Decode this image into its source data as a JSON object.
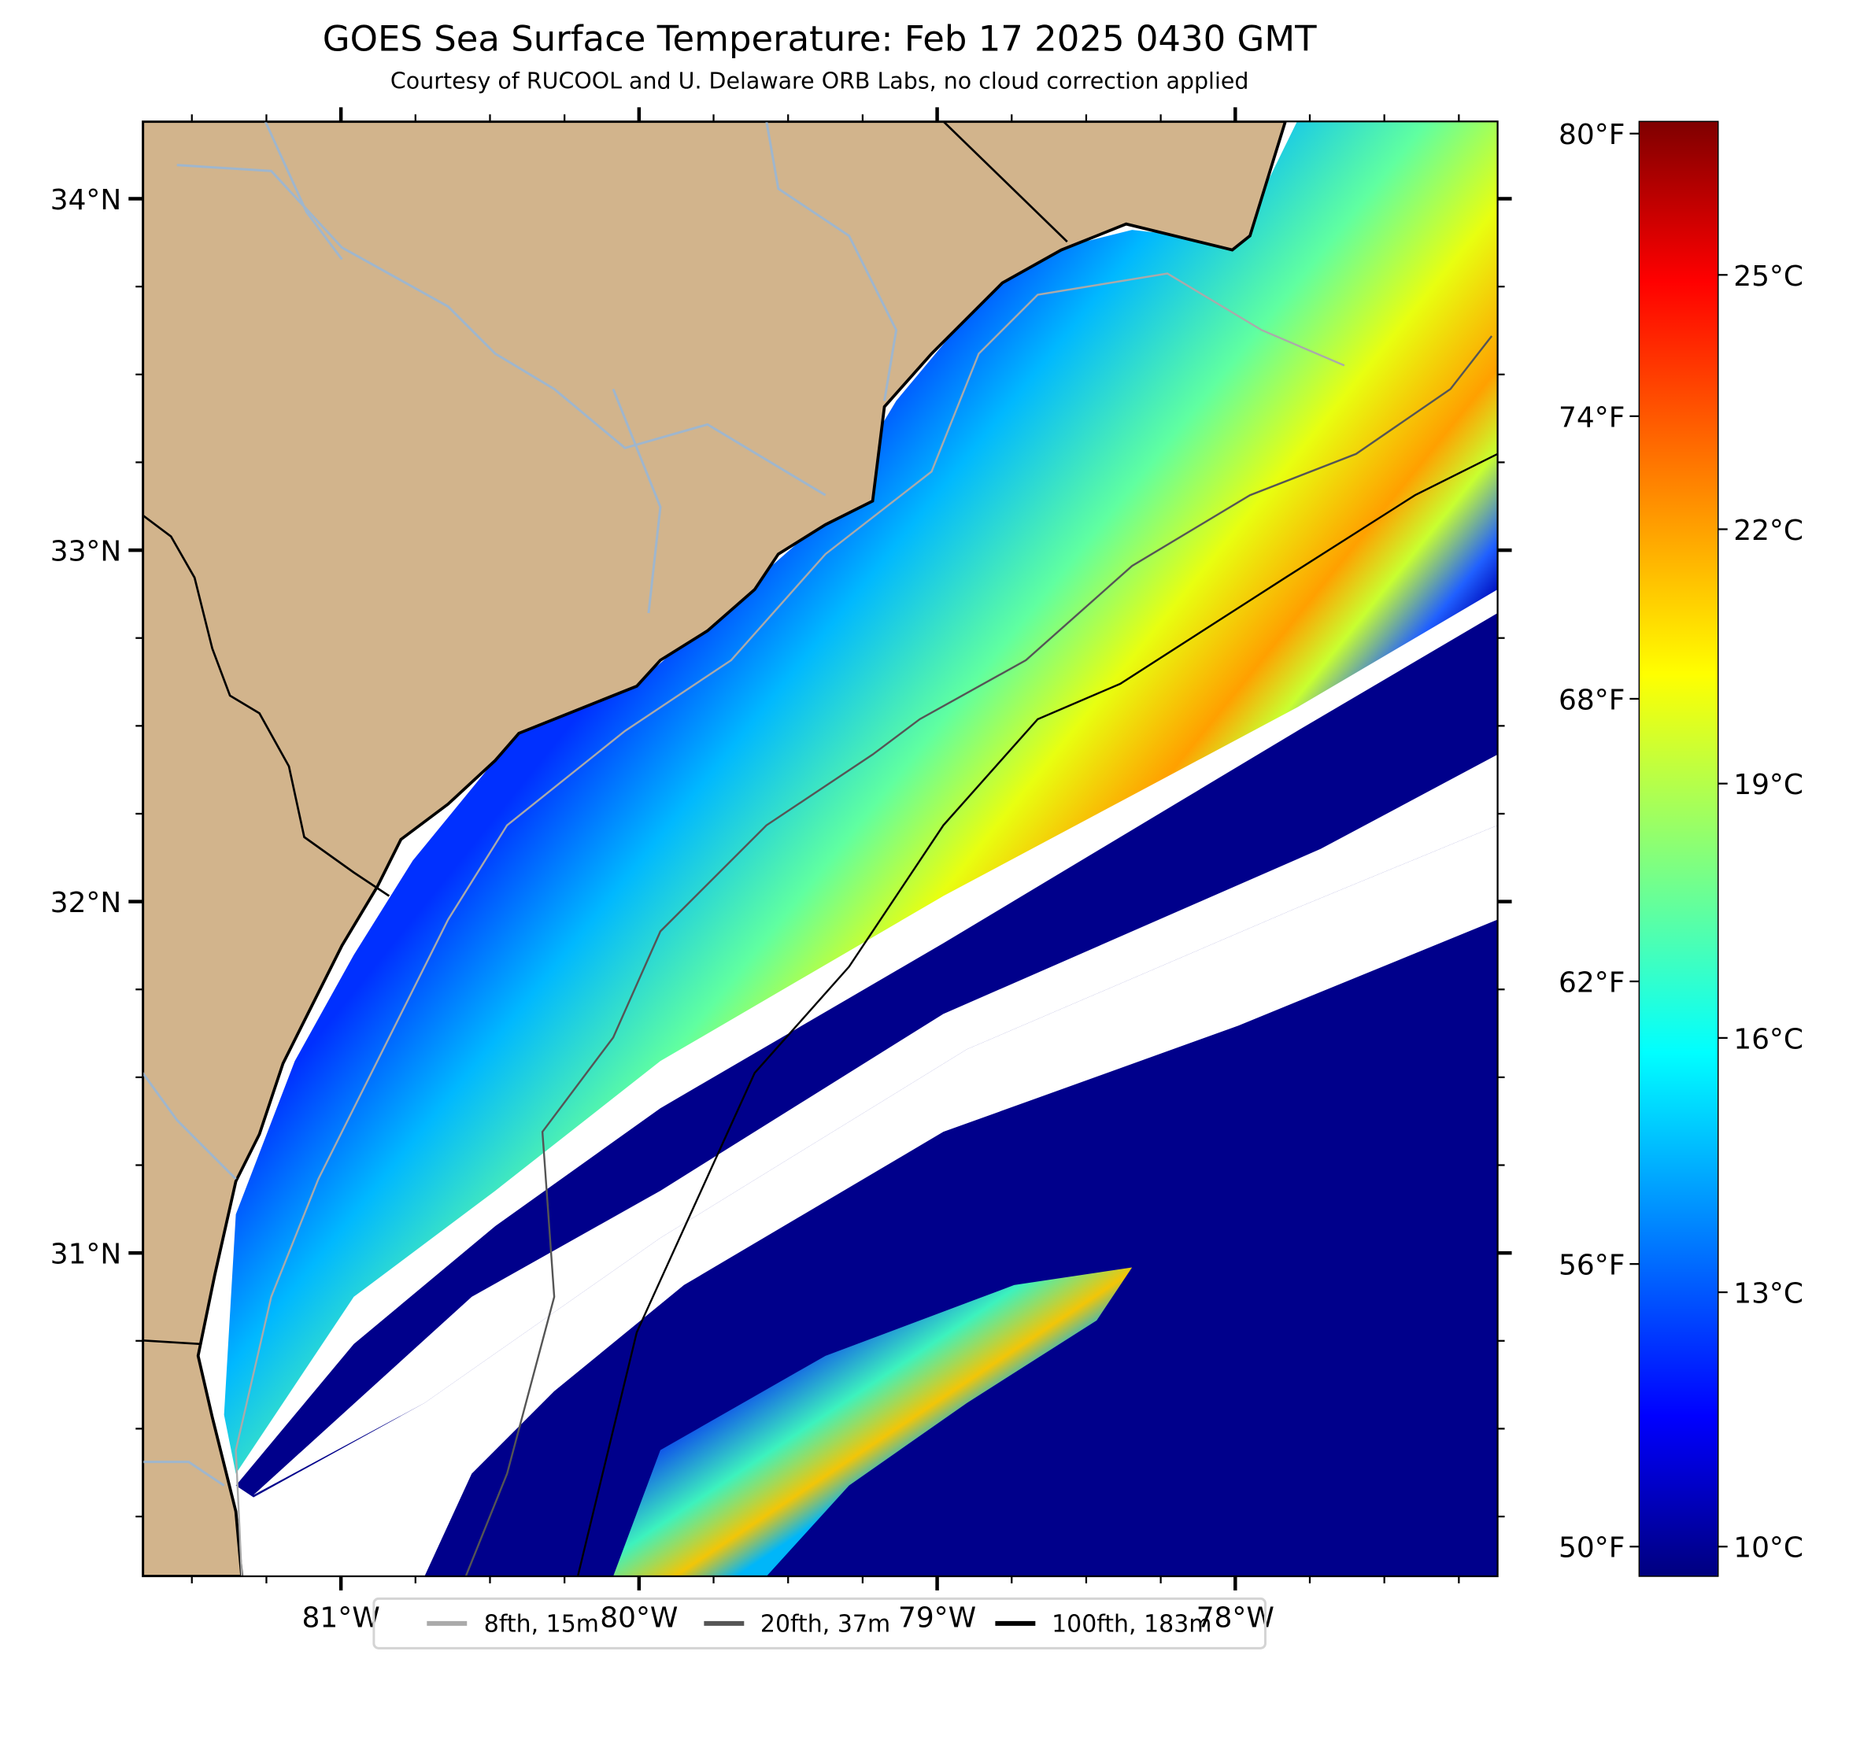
{
  "title": "GOES Sea Surface Temperature: Feb 17 2025 0430 GMT",
  "subtitle": "Courtesy of RUCOOL and U. Delaware ORB Labs, no cloud correction applied",
  "map": {
    "lon_range": [
      -81.665,
      -77.12
    ],
    "lat_range": [
      30.08,
      34.22
    ],
    "lon_ticks": [
      {
        "v": -81,
        "label": "81°W"
      },
      {
        "v": -80,
        "label": "80°W"
      },
      {
        "v": -79,
        "label": "79°W"
      },
      {
        "v": -78,
        "label": "78°W"
      }
    ],
    "lat_ticks": [
      {
        "v": 34,
        "label": "34°N"
      },
      {
        "v": 33,
        "label": "33°N"
      },
      {
        "v": 32,
        "label": "32°N"
      },
      {
        "v": 31,
        "label": "31°N"
      }
    ],
    "land_color": "#d2b48c",
    "river_color": "#9fb6cd"
  },
  "colorbar": {
    "units": "°C",
    "range_c": [
      9.65,
      26.81
    ],
    "c_ticks": [
      {
        "v": 25,
        "label": "25°C"
      },
      {
        "v": 22,
        "label": "22°C"
      },
      {
        "v": 19,
        "label": "19°C"
      },
      {
        "v": 16,
        "label": "16°C"
      },
      {
        "v": 13,
        "label": "13°C"
      },
      {
        "v": 10,
        "label": "10°C"
      }
    ],
    "f_ticks": [
      {
        "v": 80,
        "label": "80°F"
      },
      {
        "v": 74,
        "label": "74°F"
      },
      {
        "v": 68,
        "label": "68°F"
      },
      {
        "v": 62,
        "label": "62°F"
      },
      {
        "v": 56,
        "label": "56°F"
      },
      {
        "v": 50,
        "label": "50°F"
      }
    ],
    "colormap": "jet"
  },
  "legend": [
    {
      "label": "8fth, 15m",
      "color": "#aaaaaa"
    },
    {
      "label": "20fth, 37m",
      "color": "#555555"
    },
    {
      "label": "100fth, 183m",
      "color": "#000000"
    }
  ]
}
